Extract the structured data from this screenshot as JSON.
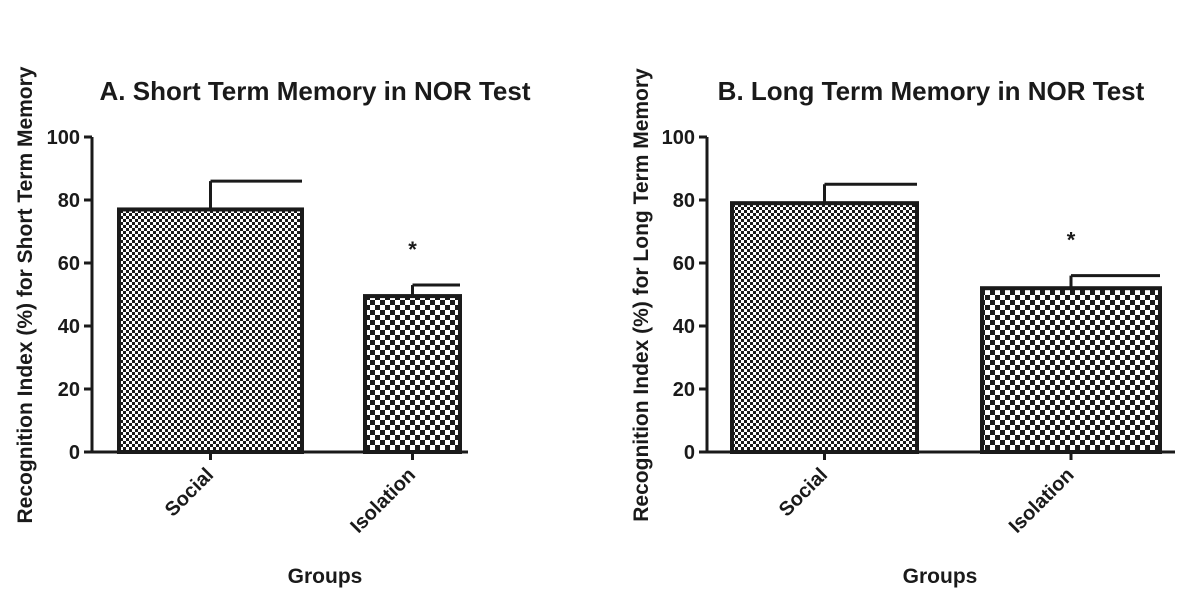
{
  "colors": {
    "ink": "#1a1a1a",
    "bar_fill": "#ffffff",
    "background": "#ffffff"
  },
  "chart_data": [
    {
      "type": "bar",
      "title": "A. Short Term Memory in NOR Test",
      "xlabel": "Groups",
      "ylabel": "Recognition Index (%) for Short Term Memory",
      "ylim": [
        0,
        100
      ],
      "yticks": [
        "0",
        "20",
        "40",
        "60",
        "80",
        "100"
      ],
      "categories": [
        "Social",
        "Isolation"
      ],
      "values": [
        77,
        49.5
      ],
      "errors": [
        9,
        3.5
      ],
      "patterns": [
        "fine-checker",
        "coarse-checker"
      ],
      "annotations": [
        "",
        "*"
      ],
      "grid": false,
      "legend": "none"
    },
    {
      "type": "bar",
      "title": "B. Long Term Memory in NOR Test",
      "xlabel": "Groups",
      "ylabel": "Recognition Index (%) for Long Term Memory",
      "ylim": [
        0,
        100
      ],
      "yticks": [
        "0",
        "20",
        "40",
        "60",
        "80",
        "100"
      ],
      "categories": [
        "Social",
        "Isolation"
      ],
      "values": [
        79,
        52
      ],
      "errors": [
        6,
        4
      ],
      "patterns": [
        "fine-checker",
        "coarse-checker"
      ],
      "annotations": [
        "",
        "*"
      ],
      "grid": false,
      "legend": "none"
    }
  ]
}
